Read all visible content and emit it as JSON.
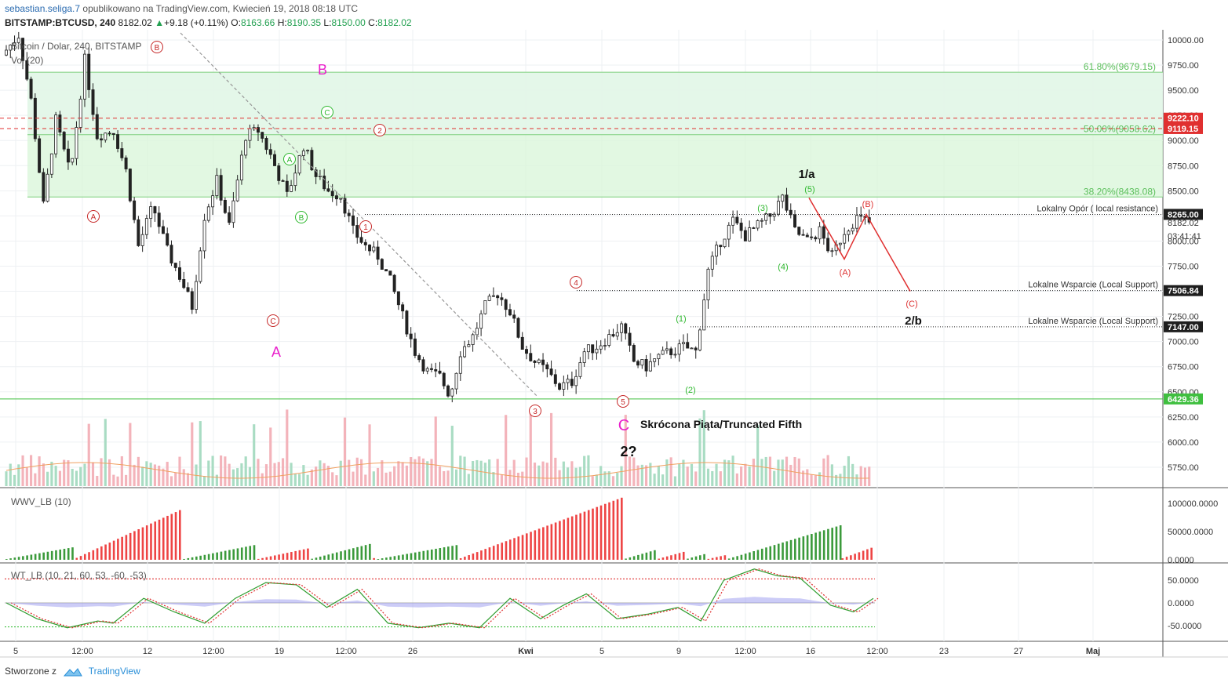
{
  "header": {
    "user": "sebastian.seliga.7",
    "published": "opublikowano na TradingView.com, Kwiecień 19, 2018 08:18 UTC",
    "symbol": "BITSTAMP:BTCUSD, 240",
    "last": "8182.02",
    "change": "+9.18 (+0.11%)",
    "o_label": "O:",
    "o": "8163.66",
    "h_label": "H:",
    "h": "8190.35",
    "l_label": "L:",
    "l": "8150.00",
    "c_label": "C:",
    "c": "8182.02"
  },
  "footer": {
    "created_by": "Stworzone z",
    "brand": "TradingView"
  },
  "colors": {
    "up": "#53b987",
    "down": "#eb4d5c",
    "zone": "#d8f5d8",
    "zone_border": "#7ccf7c",
    "magenta": "#e91ecb",
    "red_label": "#e22",
    "price_badge": "#1e1e1e"
  },
  "chart_data": [
    {
      "type": "candlestick",
      "title": "Bitcoin / Dolar, 240, BITSTAMP",
      "indicator_label": "Vol (20)",
      "y_ticks": [
        "10000.00",
        "9750.00",
        "9500.00",
        "9250.00",
        "9000.00",
        "8750.00",
        "8500.00",
        "8250.00",
        "8000.00",
        "7750.00",
        "7500.00",
        "7250.00",
        "7000.00",
        "6750.00",
        "6500.00",
        "6250.00",
        "6000.00",
        "5750.00"
      ],
      "x_ticks": [
        "5",
        "12:00",
        "12",
        "12:00",
        "19",
        "12:00",
        "26",
        "Kwi",
        "5",
        "9",
        "12:00",
        "16",
        "12:00",
        "23",
        "27",
        "Maj"
      ],
      "price_path": [
        [
          0,
          9850
        ],
        [
          8,
          10050
        ],
        [
          14,
          9400
        ],
        [
          20,
          8350
        ],
        [
          26,
          9200
        ],
        [
          33,
          8650
        ],
        [
          40,
          9800
        ],
        [
          46,
          9050
        ],
        [
          54,
          9100
        ],
        [
          60,
          8700
        ],
        [
          66,
          7950
        ],
        [
          73,
          8350
        ],
        [
          80,
          7900
        ],
        [
          86,
          7650
        ],
        [
          92,
          7350
        ],
        [
          98,
          8250
        ],
        [
          104,
          8600
        ],
        [
          110,
          8150
        ],
        [
          118,
          9050
        ],
        [
          124,
          9100
        ],
        [
          130,
          8850
        ],
        [
          138,
          8450
        ],
        [
          146,
          8950
        ],
        [
          152,
          8650
        ],
        [
          158,
          8500
        ],
        [
          164,
          8450
        ],
        [
          170,
          8100
        ],
        [
          176,
          7950
        ],
        [
          182,
          7850
        ],
        [
          188,
          7600
        ],
        [
          194,
          7250
        ],
        [
          200,
          6900
        ],
        [
          206,
          6700
        ],
        [
          212,
          6650
        ],
        [
          217,
          6460
        ],
        [
          222,
          6900
        ],
        [
          228,
          7050
        ],
        [
          234,
          7350
        ],
        [
          240,
          7480
        ],
        [
          246,
          7300
        ],
        [
          252,
          6950
        ],
        [
          258,
          6800
        ],
        [
          264,
          6700
        ],
        [
          270,
          6550
        ],
        [
          276,
          6600
        ],
        [
          282,
          6900
        ],
        [
          288,
          6950
        ],
        [
          294,
          7050
        ],
        [
          300,
          7150
        ],
        [
          306,
          6800
        ],
        [
          312,
          6750
        ],
        [
          318,
          6850
        ],
        [
          324,
          6900
        ],
        [
          330,
          6950
        ],
        [
          336,
          6900
        ],
        [
          342,
          7700
        ],
        [
          348,
          8000
        ],
        [
          354,
          8200
        ],
        [
          360,
          8050
        ],
        [
          366,
          8150
        ],
        [
          372,
          8250
        ],
        [
          378,
          8430
        ],
        [
          384,
          8100
        ],
        [
          390,
          8000
        ],
        [
          396,
          8100
        ],
        [
          402,
          7850
        ],
        [
          408,
          8100
        ],
        [
          414,
          8230
        ],
        [
          420,
          8182
        ]
      ],
      "horizontal_levels": [
        {
          "price": 9222.1,
          "label": "9222.10",
          "style": "dashed-red"
        },
        {
          "price": 9119.15,
          "label": "9119.15",
          "style": "dashed-red"
        },
        {
          "price": 8265.0,
          "label": "8265.00",
          "note": "Lokalny Opór ( local resistance)",
          "style": "dotted"
        },
        {
          "price": 7506.84,
          "label": "7506.84",
          "note": "Lokalne Wsparcie (Local Support)",
          "style": "dotted"
        },
        {
          "price": 7147.0,
          "label": "7147.00",
          "note": "Lokalne Wsparcie (Local Support)",
          "style": "dotted"
        },
        {
          "price": 6429.36,
          "label": "6429.36",
          "style": "solid-green"
        }
      ],
      "fib_levels": [
        {
          "label": "61.80%(9679.15)",
          "price": 9679.15
        },
        {
          "label": "50.00%(9058.62)",
          "price": 9058.62
        },
        {
          "label": "38.20%(8438.08)",
          "price": 8438.08
        }
      ],
      "current_price": "8182.02",
      "countdown": "03:41:41",
      "annotations": {
        "big_B": "B",
        "big_A": "A",
        "big_C": "C",
        "one_a": "1/a",
        "two_b": "2/b",
        "two_q": "2?",
        "truncated": "Skrócona Piąta/Truncated Fifth",
        "circ_red": [
          "A",
          "B",
          "C",
          "1",
          "2",
          "3",
          "4",
          "5",
          "(A)",
          "(B)",
          "(C)"
        ],
        "circ_green": [
          "A",
          "B",
          "C",
          "(1)",
          "(2)",
          "(3)",
          "(4)",
          "(5)"
        ]
      }
    },
    {
      "type": "bar",
      "title": "WWV_LB (10)",
      "y_ticks": [
        "100000.0000",
        "50000.0000",
        "0.0000"
      ]
    },
    {
      "type": "line",
      "title": "WT_LB (10, 21, 60, 53, -60, -53)",
      "y_ticks": [
        "50.0000",
        "0.0000",
        "-50.0000"
      ],
      "levels": [
        53,
        -53
      ]
    }
  ]
}
